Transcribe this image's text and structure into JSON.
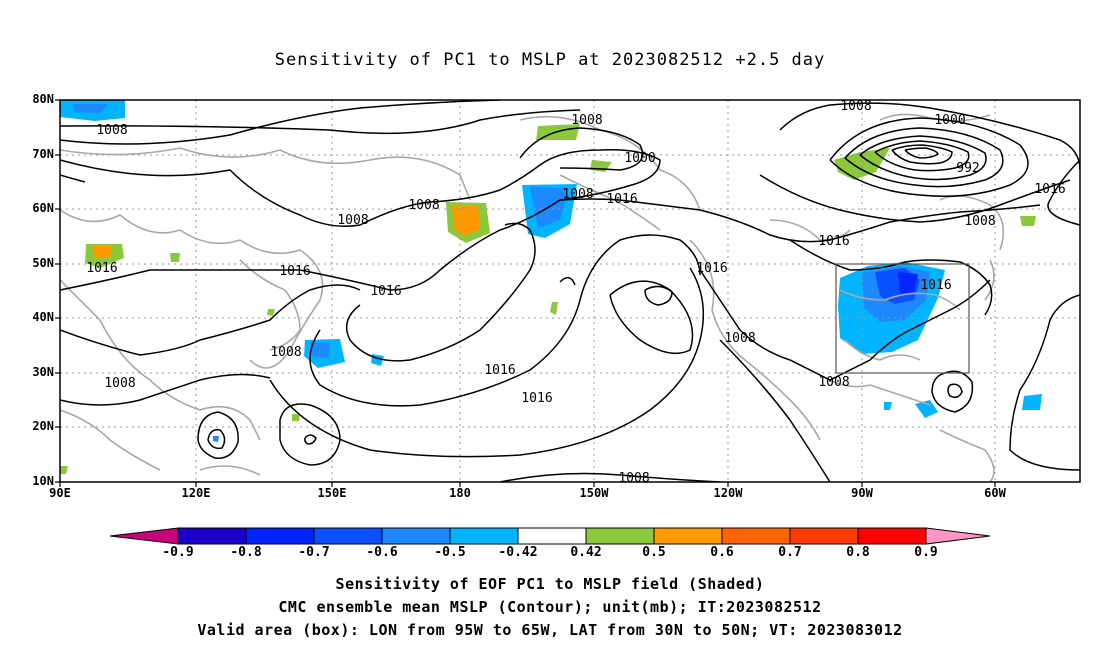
{
  "title": "Sensitivity of PC1 to MSLP at 2023082512 +2.5 day",
  "map": {
    "lat_labels": [
      "80N",
      "70N",
      "60N",
      "50N",
      "40N",
      "30N",
      "20N",
      "10N"
    ],
    "lon_labels": [
      "90E",
      "120E",
      "150E",
      "180",
      "150W",
      "120W",
      "90W",
      "60W"
    ],
    "box": {
      "lon_from": "95W",
      "lon_to": "65W",
      "lat_from": "30N",
      "lat_to": "50N"
    },
    "contour_labels": [
      "1008",
      "1008",
      "1008",
      "1008",
      "1016",
      "1016",
      "1008",
      "1000",
      "1008",
      "1016",
      "1016",
      "1008",
      "1016",
      "1016",
      "1016",
      "1008",
      "1008",
      "1016",
      "1008",
      "1016",
      "1008",
      "1000",
      "992",
      "1008",
      "1016",
      "1016",
      "1008"
    ],
    "colors": {
      "coast": "#a8a8a8",
      "contour": "#000000",
      "grid": "#999999"
    }
  },
  "colorbar": {
    "labels": [
      "-0.9",
      "-0.8",
      "-0.7",
      "-0.6",
      "-0.5",
      "-0.42",
      "0.42",
      "0.5",
      "0.6",
      "0.7",
      "0.8",
      "0.9"
    ],
    "colors": [
      "#c8007a",
      "#1a00c8",
      "#0025ff",
      "#0a50ff",
      "#1e88ff",
      "#00b4ff",
      "#ffffff",
      "#8cc83c",
      "#ff9a00",
      "#ff6400",
      "#ff3c00",
      "#ff0000",
      "#ff96c8"
    ]
  },
  "captions": [
    "Sensitivity of EOF PC1 to MSLP field (Shaded)",
    "CMC ensemble mean MSLP (Contour); unit(mb); IT:2023082512",
    "Valid area (box): LON from 95W to 65W, LAT from 30N to 50N; VT: 2023083012"
  ]
}
